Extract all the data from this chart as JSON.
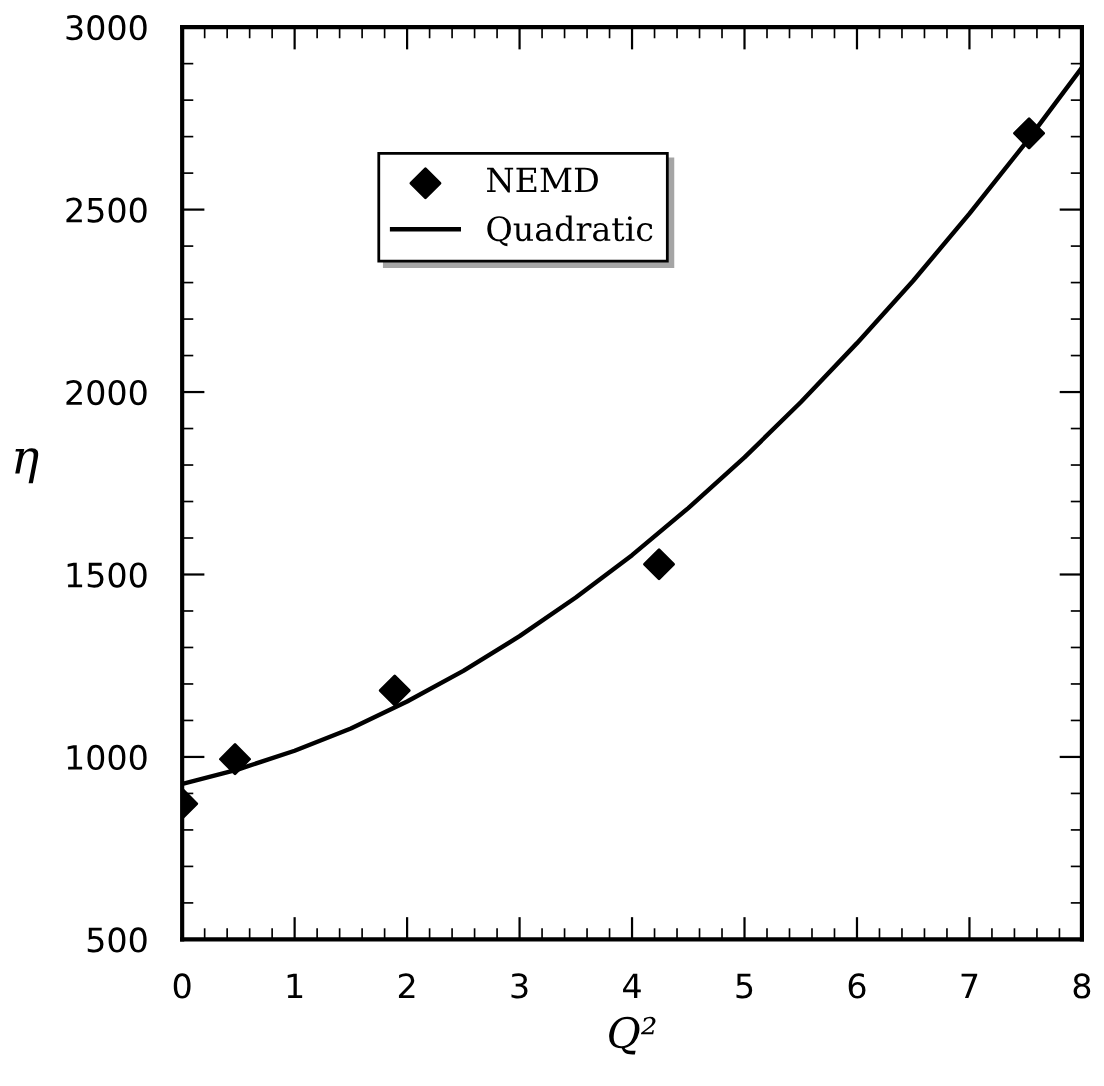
{
  "chart_data": {
    "type": "scatter",
    "xlabel": "Q²",
    "ylabel": "η",
    "xlim": [
      0,
      8
    ],
    "ylim": [
      500,
      3000
    ],
    "xticks": [
      0,
      1,
      2,
      3,
      4,
      5,
      6,
      7,
      8
    ],
    "yticks": [
      500,
      1000,
      1500,
      2000,
      2500,
      3000
    ],
    "grid": false,
    "legend": "top left",
    "series": [
      {
        "name": "NEMD",
        "marker": "diamond",
        "color": "#000000",
        "x": [
          0,
          0.47,
          1.89,
          4.24,
          7.53
        ],
        "values": [
          872,
          994,
          1182,
          1528,
          2709
        ]
      },
      {
        "name": "Quadratic",
        "type": "line",
        "line_style": "solid",
        "color": "#000000",
        "x": [
          0,
          0.5,
          1,
          1.5,
          2,
          2.5,
          3,
          3.5,
          4,
          4.5,
          5,
          5.5,
          6,
          6.5,
          7,
          7.5,
          8
        ],
        "values": [
          926,
          966,
          1017,
          1078,
          1152,
          1236,
          1331,
          1437,
          1553,
          1682,
          1821,
          1972,
          2134,
          2305,
          2489,
          2683,
          2889
        ]
      }
    ]
  }
}
